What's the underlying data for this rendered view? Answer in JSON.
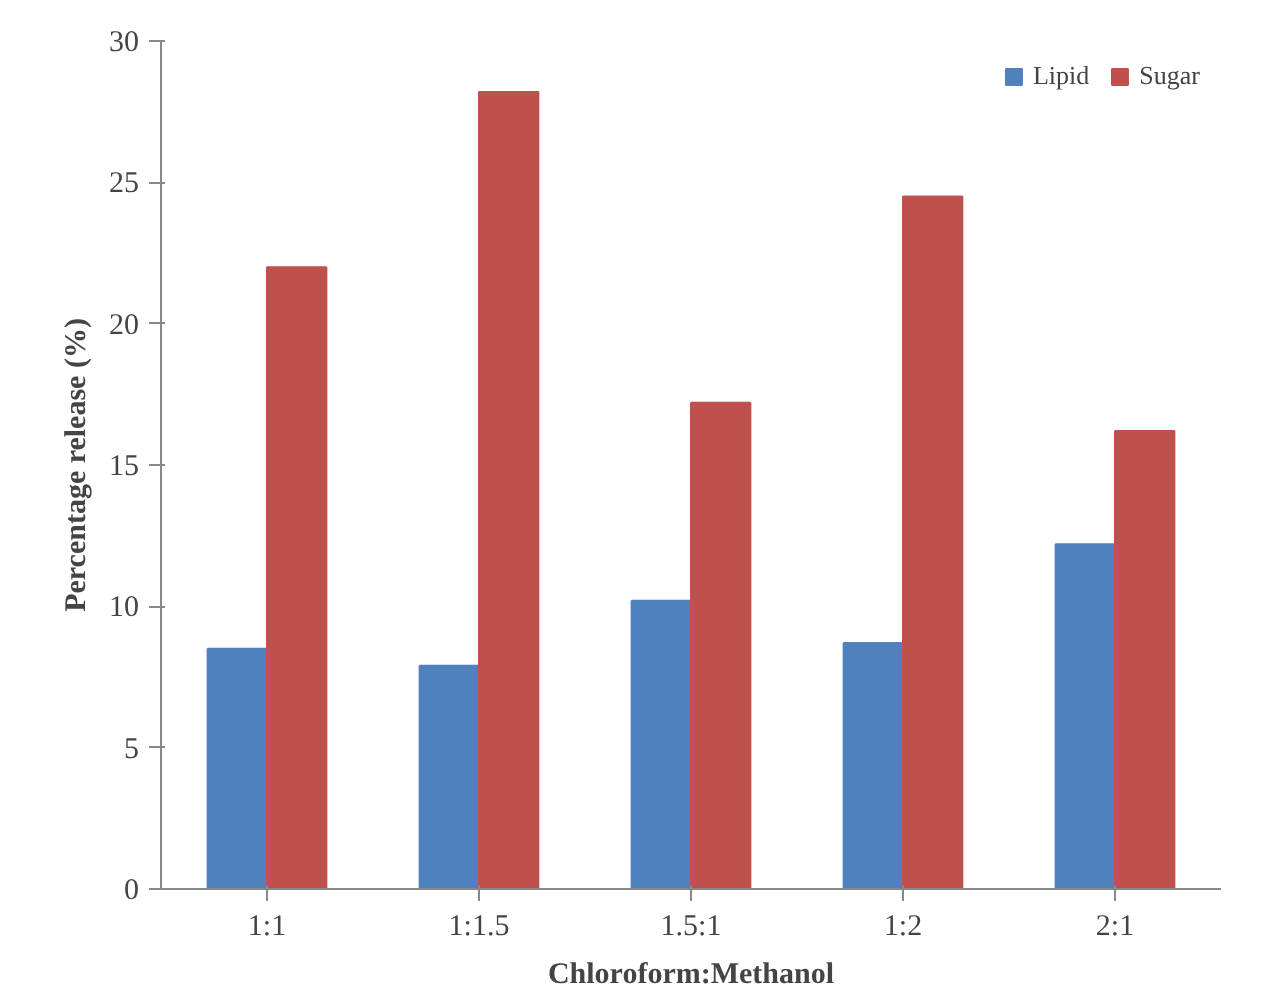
{
  "chart_data": {
    "type": "bar",
    "xlabel": "Chloroform:Methanol",
    "ylabel": "Percentage release (%)",
    "categories": [
      "1:1",
      "1:1.5",
      "1.5:1",
      "1:2",
      "2:1"
    ],
    "series": [
      {
        "name": "Lipid",
        "color": "#4f81bd",
        "values": [
          8.5,
          7.9,
          10.2,
          8.7,
          12.2
        ]
      },
      {
        "name": "Sugar",
        "color": "#c0504d",
        "values": [
          22.0,
          28.2,
          17.2,
          24.5,
          16.2
        ]
      }
    ],
    "ylim": [
      0,
      30
    ],
    "yticks": [
      0,
      5,
      10,
      15,
      20,
      25,
      30
    ],
    "grid": false,
    "legend": "top right"
  }
}
